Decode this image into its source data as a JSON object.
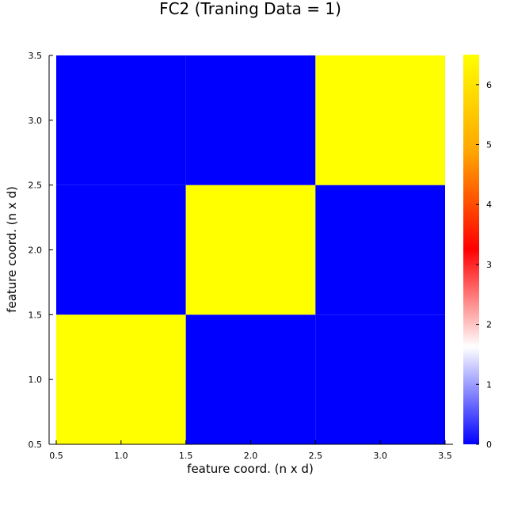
{
  "chart_data": {
    "type": "heatmap",
    "title": "FC2 (Traning Data = 1)",
    "xlabel": "feature coord. (n x d)",
    "ylabel": "feature coord. (n x d)",
    "x_categories": [
      1,
      2,
      3
    ],
    "y_categories": [
      1,
      2,
      3
    ],
    "xlim": [
      0.5,
      3.5
    ],
    "ylim": [
      0.5,
      3.5
    ],
    "x_ticks": [
      "0.5",
      "1.0",
      "1.5",
      "2.0",
      "2.5",
      "3.0",
      "3.5"
    ],
    "y_ticks": [
      "0.5",
      "1.0",
      "1.5",
      "2.0",
      "2.5",
      "3.0",
      "3.5"
    ],
    "values": [
      [
        6.5,
        0,
        0
      ],
      [
        0,
        6.5,
        0
      ],
      [
        0,
        0,
        6.5
      ]
    ],
    "colorbar": {
      "range": [
        0,
        6.5
      ],
      "ticks": [
        "0",
        "1",
        "2",
        "3",
        "4",
        "5",
        "6"
      ],
      "colors": [
        "#0000ff",
        "#ffffff",
        "#ff0000",
        "#ffa500",
        "#ffff00"
      ]
    },
    "grid": true
  }
}
